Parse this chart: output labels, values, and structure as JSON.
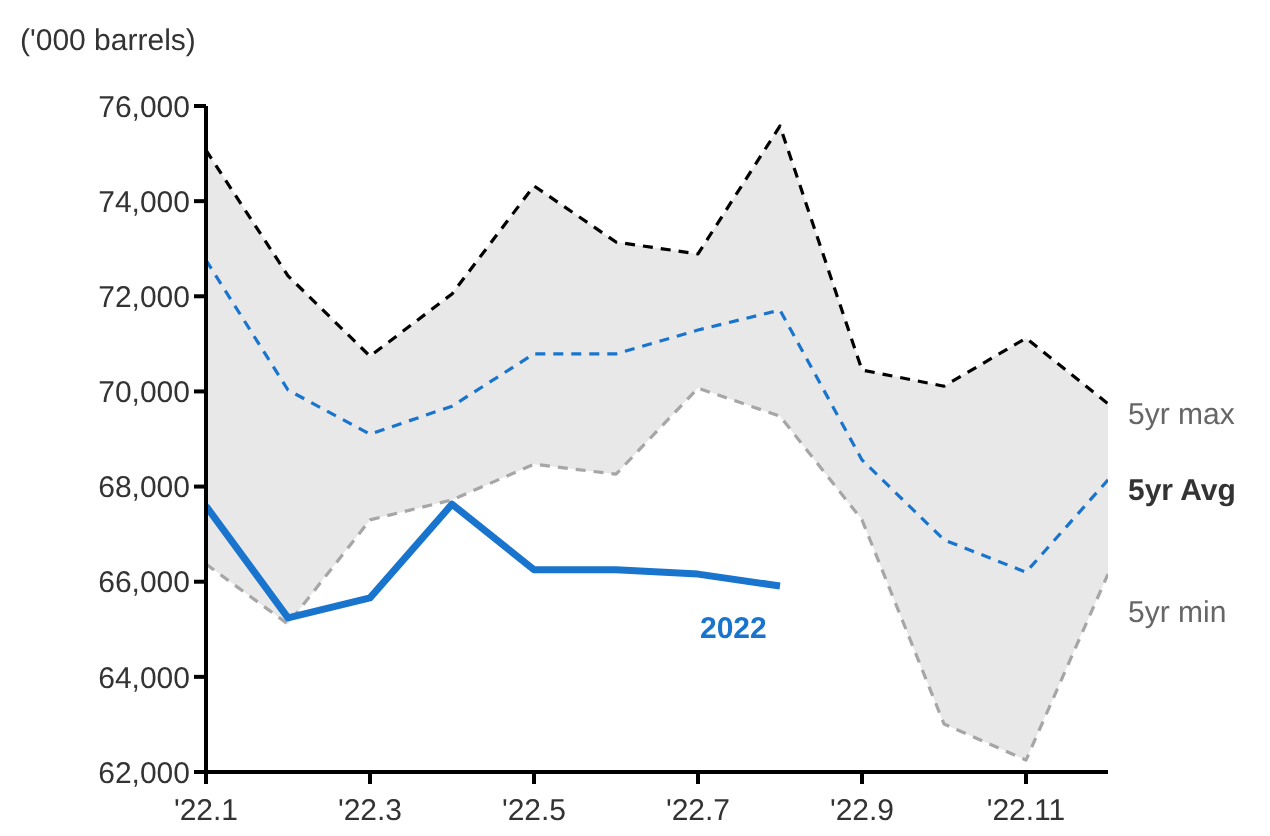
{
  "chart_data": {
    "type": "line",
    "ylabel": "('000 barrels)",
    "categories": [
      "'22.1",
      null,
      "'22.3",
      null,
      "'22.5",
      null,
      "'22.7",
      null,
      "'22.9",
      null,
      "'22.11",
      null
    ],
    "series": [
      {
        "name": "5yr max",
        "color": "#000000",
        "line_style": "dashed",
        "values": [
          75070,
          72430,
          70740,
          72050,
          74320,
          73140,
          72890,
          75580,
          70450,
          70110,
          71120,
          69740
        ]
      },
      {
        "name": "5yr Avg",
        "color": "#1874cd",
        "line_style": "dashed",
        "values": [
          72760,
          70030,
          69100,
          69690,
          70790,
          70790,
          71290,
          71710,
          68560,
          66880,
          66200,
          68140
        ],
        "lower": [
          66370,
          65110,
          67300,
          67720,
          68470,
          68260,
          70070,
          69480,
          67300,
          63010,
          62250,
          66160
        ],
        "upper": [
          75070,
          72430,
          70740,
          72050,
          74320,
          73140,
          72890,
          75580,
          70450,
          70110,
          71120,
          69740
        ]
      },
      {
        "name": "5yr min",
        "color": "#a6a6a6",
        "line_style": "dashed",
        "values": [
          66370,
          65110,
          67300,
          67720,
          68470,
          68260,
          70070,
          69480,
          67300,
          63010,
          62250,
          66160
        ]
      },
      {
        "name": "2022",
        "color": "#1874cd",
        "line_style": "solid",
        "values": [
          67590,
          65240,
          65660,
          67630,
          66250,
          66250,
          66160,
          65910,
          null,
          null,
          null,
          null
        ]
      }
    ],
    "ylim": [
      62000,
      76000
    ],
    "yticks": [
      {
        "value": 62000,
        "label": "62,000"
      },
      {
        "value": 64000,
        "label": "64,000"
      },
      {
        "value": 66000,
        "label": "66,000"
      },
      {
        "value": 68000,
        "label": "68,000"
      },
      {
        "value": 70000,
        "label": "70,000"
      },
      {
        "value": 72000,
        "label": "72,000"
      },
      {
        "value": 74000,
        "label": "74,000"
      },
      {
        "value": 76000,
        "label": "76,000"
      }
    ],
    "grid": false,
    "legend": false,
    "marker": "none"
  }
}
